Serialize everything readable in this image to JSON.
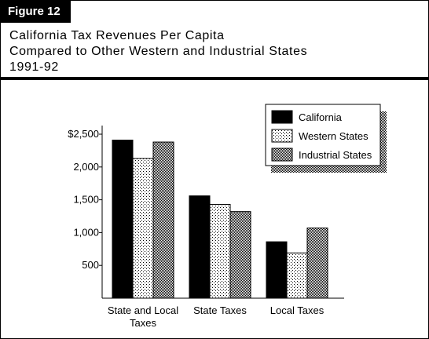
{
  "figure_label": "Figure 12",
  "title_lines": [
    "California Tax Revenues Per Capita",
    "Compared to Other Western and Industrial States",
    "1991-92"
  ],
  "colors": {
    "california": "#000000",
    "western": "#ffffff",
    "industrial": "#d8d8d8"
  },
  "chart_data": {
    "type": "bar",
    "title": "California Tax Revenues Per Capita Compared to Other Western and Industrial States 1991-92",
    "categories": [
      "State and Local Taxes",
      "State Taxes",
      "Local Taxes"
    ],
    "category_label_lines": [
      [
        "State and Local",
        "Taxes"
      ],
      [
        "State Taxes"
      ],
      [
        "Local Taxes"
      ]
    ],
    "series": [
      {
        "name": "California",
        "values": [
          2410,
          1560,
          860
        ]
      },
      {
        "name": "Western States",
        "values": [
          2130,
          1430,
          690
        ]
      },
      {
        "name": "Industrial States",
        "values": [
          2380,
          1320,
          1070
        ]
      }
    ],
    "ylim": [
      0,
      2500
    ],
    "yticks": [
      500,
      1000,
      1500,
      2000,
      2500
    ],
    "ytick_labels": [
      "500",
      "1,000",
      "1,500",
      "2,000",
      "$2,500"
    ],
    "grid": false,
    "legend": "top-right"
  }
}
